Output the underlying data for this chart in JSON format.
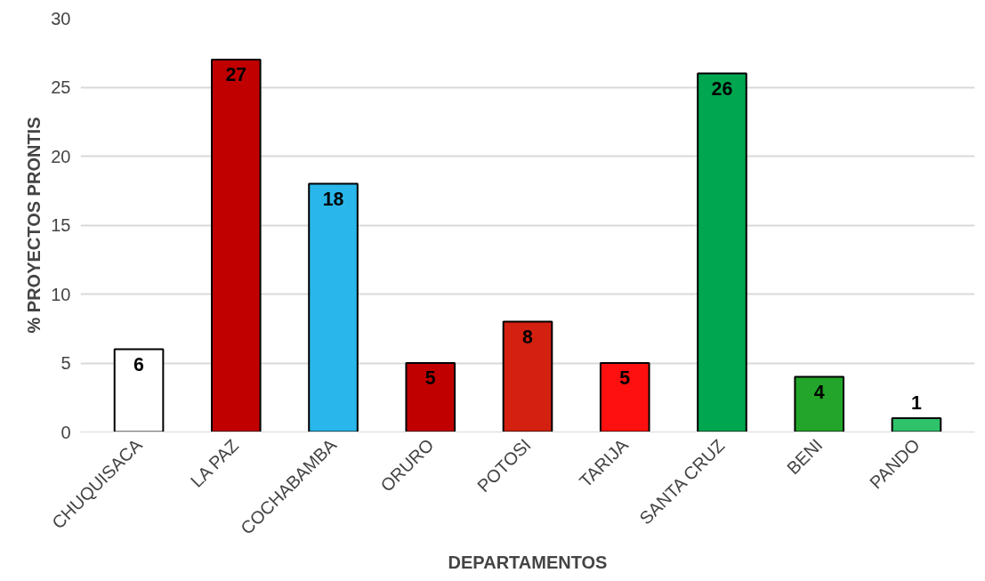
{
  "chart_data": {
    "type": "bar",
    "xlabel": "DEPARTAMENTOS",
    "ylabel": "% PROYECTOS PRONTIS",
    "categories": [
      "CHUQUISACA",
      "LA PAZ",
      "COCHABAMBA",
      "ORURO",
      "POTOSI",
      "TARIJA",
      "SANTA CRUZ",
      "BENI",
      "PANDO"
    ],
    "values": [
      6,
      27,
      18,
      5,
      8,
      5,
      26,
      4,
      1
    ],
    "colors": [
      "#ffffff",
      "#c00000",
      "#29b6ea",
      "#c00000",
      "#d42010",
      "#ff1010",
      "#00a650",
      "#22a52a",
      "#2ec26b"
    ],
    "ylim": [
      0,
      30
    ],
    "yticks": [
      0,
      5,
      10,
      15,
      20,
      25,
      30
    ],
    "grid": "y",
    "data_labels": true
  }
}
